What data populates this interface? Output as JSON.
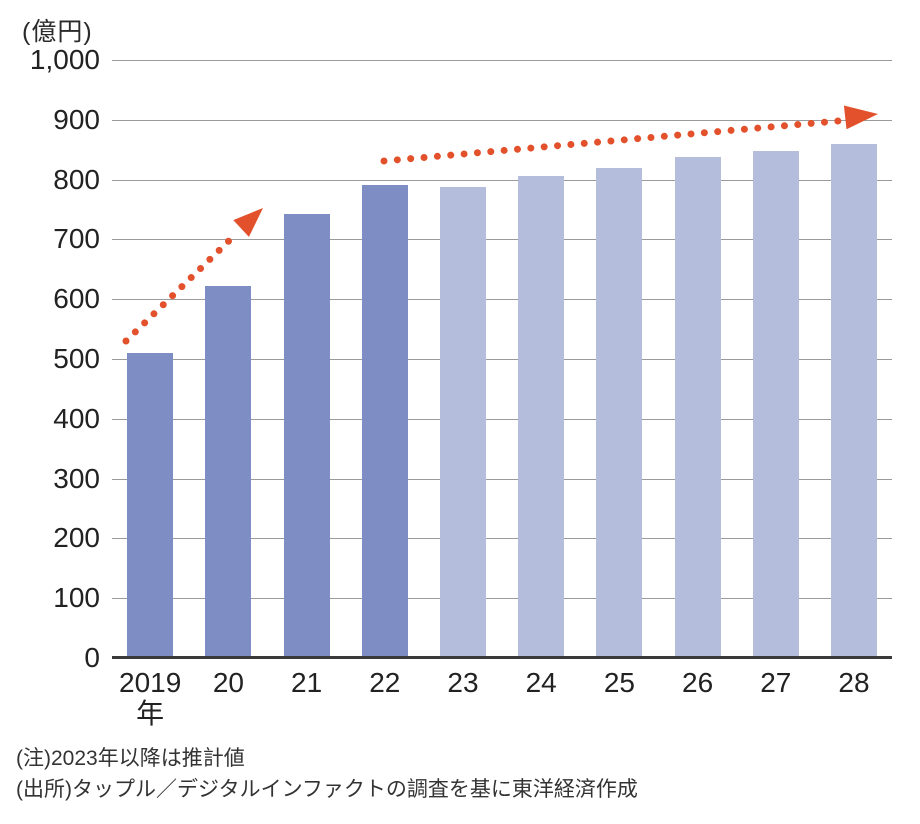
{
  "figure": {
    "unit_label": "(億円)",
    "notes": {
      "note": "(注)2023年以降は推計値",
      "source": "(出所)タップル／デジタルインファクトの調査を基に東洋経済作成"
    }
  },
  "colors": {
    "actual_bar": "#7e8ec4",
    "estimate_bar": "#b4bddc",
    "arrow": "#e2512b",
    "gridline": "#9b9b9b",
    "axis_line": "#3a3a3a",
    "label_text": "#222222",
    "note_text": "#333333"
  },
  "chart_data": {
    "type": "bar",
    "title": "",
    "ylabel": "(億円)",
    "unit": "億円",
    "categories": [
      "2019",
      "20",
      "21",
      "22",
      "23",
      "24",
      "25",
      "26",
      "27",
      "28"
    ],
    "first_category_suffix": "年",
    "values": [
      510,
      622,
      742,
      791,
      788,
      806,
      819,
      837,
      848,
      860
    ],
    "is_estimate": [
      false,
      false,
      false,
      false,
      true,
      true,
      true,
      true,
      true,
      true
    ],
    "ylim": [
      0,
      1000
    ],
    "ytick_interval": 100,
    "ytick_labels": [
      "0",
      "100",
      "200",
      "300",
      "400",
      "500",
      "600",
      "700",
      "800",
      "900",
      "1,000"
    ],
    "grid": true,
    "legend_position": "none",
    "annotations": [
      {
        "type": "dotted-arrow",
        "from_category": "2019",
        "to_category": "21",
        "note": "rising trend over actual years"
      },
      {
        "type": "dotted-arrow",
        "from_category": "22",
        "to_category": "28",
        "note": "rising trend over estimated years"
      }
    ]
  }
}
